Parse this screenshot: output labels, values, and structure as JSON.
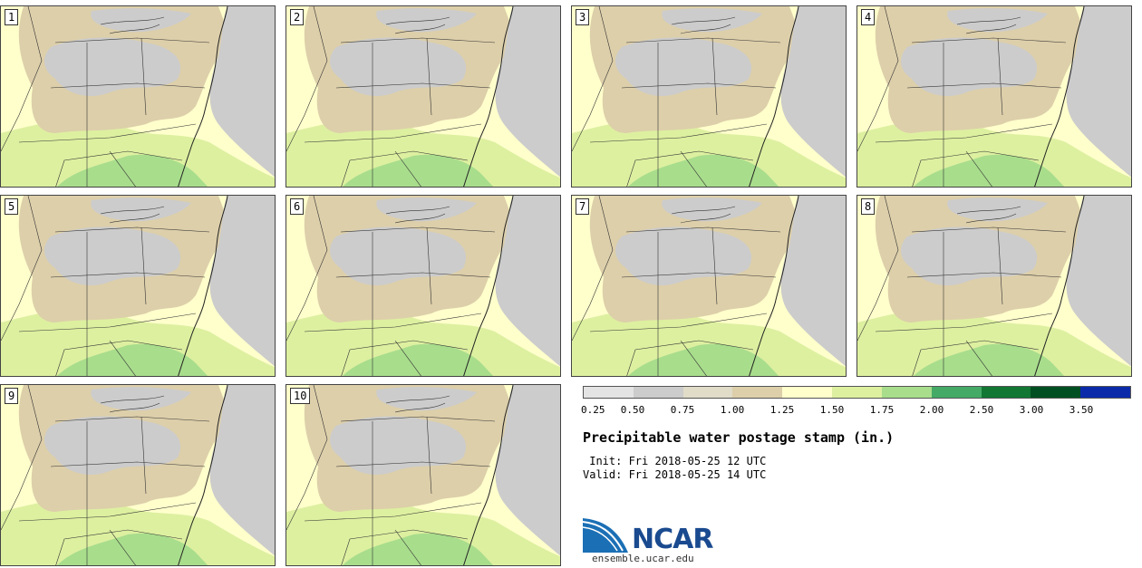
{
  "stamps": [
    {
      "label": "1"
    },
    {
      "label": "2"
    },
    {
      "label": "3"
    },
    {
      "label": "4"
    },
    {
      "label": "5"
    },
    {
      "label": "6"
    },
    {
      "label": "7"
    },
    {
      "label": "8"
    },
    {
      "label": "9"
    },
    {
      "label": "10"
    }
  ],
  "legend": {
    "swatches": [
      "#e4e4e4",
      "#cccccc",
      "#e0dcc8",
      "#ddcfaa",
      "#ffffcc",
      "#ddf0a0",
      "#a8dd8c",
      "#44aa66",
      "#117733",
      "#004f22",
      "#0b2aaa"
    ],
    "ticks": [
      "0.25",
      "0.50",
      "0.75",
      "1.00",
      "1.25",
      "1.50",
      "1.75",
      "2.00",
      "2.50",
      "3.00",
      "3.50"
    ]
  },
  "title": "Precipitable water postage stamp (in.)",
  "init_line": " Init: Fri 2018-05-25 12 UTC",
  "valid_line": "Valid: Fri 2018-05-25 14 UTC",
  "logo": {
    "name": "NCAR",
    "url": "ensemble.ucar.edu"
  },
  "colors": {
    "ocean_gray": "#cccccc",
    "tan": "#ddcfaa",
    "light_green": "#ddf0a0",
    "mid_green": "#a8dd8c",
    "dark_green": "#44aa66",
    "boundary": "#333333"
  }
}
